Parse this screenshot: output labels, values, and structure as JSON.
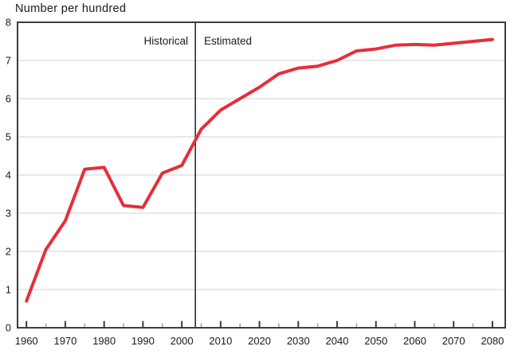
{
  "chart_data": {
    "type": "line",
    "title": "Number per hundred",
    "ylabel": "Number per hundred",
    "xlabel": "",
    "x": [
      1960,
      1965,
      1970,
      1975,
      1980,
      1985,
      1990,
      1995,
      2000,
      2005,
      2010,
      2015,
      2020,
      2025,
      2030,
      2035,
      2040,
      2045,
      2050,
      2055,
      2060,
      2065,
      2070,
      2075,
      2080
    ],
    "series": [
      {
        "name": "Number per hundred",
        "values": [
          0.7,
          2.05,
          2.8,
          4.15,
          4.2,
          3.2,
          3.15,
          4.05,
          4.25,
          5.2,
          5.7,
          6.0,
          6.3,
          6.65,
          6.8,
          6.85,
          7.0,
          7.25,
          7.3,
          7.4,
          7.42,
          7.4,
          7.45,
          7.5,
          7.55
        ],
        "color": "#e62e3a"
      }
    ],
    "ylim": [
      0,
      8
    ],
    "xlim": [
      1957.7,
      2083.3
    ],
    "y_ticks": [
      0,
      1,
      2,
      3,
      4,
      5,
      6,
      7,
      8
    ],
    "x_major_ticks": [
      1960,
      1970,
      1980,
      1990,
      2000,
      2010,
      2020,
      2030,
      2040,
      2050,
      2060,
      2070,
      2080
    ],
    "x_minor_ticks": [
      1965,
      1975,
      1985,
      1995,
      2005,
      2015,
      2025,
      2035,
      2045,
      2055,
      2065,
      2075
    ],
    "grid": "horizontal",
    "legend": "none",
    "divider_x": 2003.5,
    "labels": {
      "historical": "Historical",
      "estimated": "Estimated"
    }
  },
  "colors": {
    "line": "#e62e3a",
    "axis": "#3c3c3c",
    "grid": "#d9d9d9",
    "divider": "#1f1f1f",
    "minor_tick": "#a0a0a0",
    "text": "#1a1a1a",
    "background": "#ffffff"
  }
}
